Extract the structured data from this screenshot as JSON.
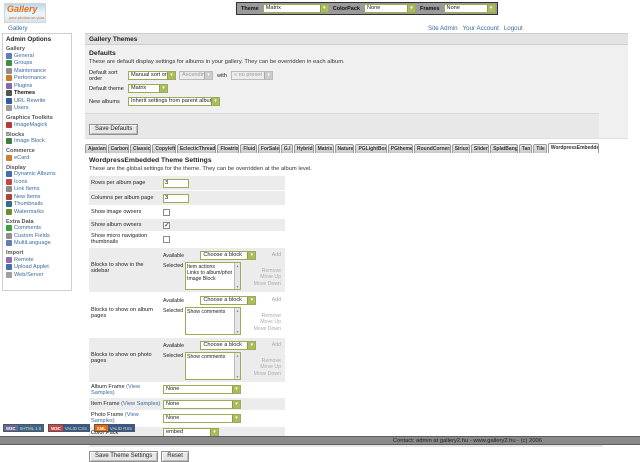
{
  "theme_bar": {
    "theme_label": "Theme",
    "theme_value": "Matrix",
    "colorpack_label": "ColorPack",
    "colorpack_value": "None",
    "frames_label": "Frames",
    "frames_value": "None"
  },
  "logo": {
    "title": "Gallery",
    "tagline": "your photos on your website"
  },
  "nav": {
    "home": "Gallery",
    "links": [
      "Site Admin",
      "Your Account",
      "Logout"
    ]
  },
  "sidebar": {
    "title": "Admin Options",
    "sections": [
      {
        "label": "Gallery",
        "items": [
          {
            "label": "General",
            "icon": "general-icon",
            "color": "#5b7fb4"
          },
          {
            "label": "Groups",
            "icon": "groups-icon",
            "color": "#3f8f3f"
          },
          {
            "label": "Maintenance",
            "icon": "maintenance-icon",
            "color": "#8f8f8f"
          },
          {
            "label": "Performance",
            "icon": "performance-icon",
            "color": "#c87d2e"
          },
          {
            "label": "Plugins",
            "icon": "plugins-icon",
            "color": "#7d6bb0"
          },
          {
            "label": "Themes",
            "icon": "themes-icon",
            "color": "#555555",
            "active": true
          },
          {
            "label": "URL Rewrite",
            "icon": "url-rewrite-icon",
            "color": "#2e5e9e"
          },
          {
            "label": "Users",
            "icon": "users-icon",
            "color": "#9a9a9a"
          }
        ]
      },
      {
        "label": "Graphics Toolkits",
        "items": [
          {
            "label": "ImageMagick",
            "icon": "imagemagick-icon",
            "color": "#b23b3b"
          }
        ]
      },
      {
        "label": "Blocks",
        "items": [
          {
            "label": "Image Block",
            "icon": "image-block-icon",
            "color": "#3e7d3e"
          }
        ]
      },
      {
        "label": "Commerce",
        "items": [
          {
            "label": "eCard",
            "icon": "ecard-icon",
            "color": "#cf7a35"
          }
        ]
      },
      {
        "label": "Display",
        "items": [
          {
            "label": "Dynamic Albums",
            "icon": "dynamic-albums-icon",
            "color": "#3f6db2"
          },
          {
            "label": "Icons",
            "icon": "icons-icon",
            "color": "#c24444"
          },
          {
            "label": "Link Items",
            "icon": "link-items-icon",
            "color": "#8a8a8a"
          },
          {
            "label": "New Items",
            "icon": "new-items-icon",
            "color": "#b2422e"
          },
          {
            "label": "Thumbnails",
            "icon": "thumbnails-icon",
            "color": "#2e6e8e"
          },
          {
            "label": "Watermarks",
            "icon": "watermarks-icon",
            "color": "#6e8e2e"
          }
        ]
      },
      {
        "label": "Extra Data",
        "items": [
          {
            "label": "Comments",
            "icon": "comments-icon",
            "color": "#3f9f3f"
          },
          {
            "label": "Custom Fields",
            "icon": "custom-fields-icon",
            "color": "#8f8f8f"
          },
          {
            "label": "MultiLanguage",
            "icon": "multilanguage-icon",
            "color": "#5f7fb0"
          }
        ]
      },
      {
        "label": "Import",
        "items": [
          {
            "label": "Remote",
            "icon": "remote-icon",
            "color": "#8f6fb0"
          },
          {
            "label": "Upload Applet",
            "icon": "upload-applet-icon",
            "color": "#3f6fb0"
          },
          {
            "label": "Web/Server",
            "icon": "web-server-icon",
            "color": "#9f9f9f"
          }
        ]
      }
    ]
  },
  "main": {
    "page_title": "Gallery Themes",
    "defaults": {
      "title": "Defaults",
      "description": "These are default display settings for albums in your gallery. They can be overridden in each album.",
      "sort_label": "Default sort order",
      "sort_value": "Manual sort order",
      "direction_value": "Ascending",
      "with_label": "with",
      "preset_value": "« no preset »",
      "theme_label": "Default theme",
      "theme_value": "Matrix",
      "albums_label": "New albums",
      "albums_value": "Inherit settings from parent album",
      "save_button": "Save Defaults"
    },
    "tabs": [
      {
        "label": "Ajaxian"
      },
      {
        "label": "Carbon"
      },
      {
        "label": "Classic"
      },
      {
        "label": "Copyleft"
      },
      {
        "label": "EclecticThreads"
      },
      {
        "label": "Floatrix"
      },
      {
        "label": "Fluid"
      },
      {
        "label": "ForSale"
      },
      {
        "label": "G.I"
      },
      {
        "label": "Hybrid"
      },
      {
        "label": "Matrix"
      },
      {
        "label": "Nature"
      },
      {
        "label": "PGLightBox"
      },
      {
        "label": "PGtheme"
      },
      {
        "label": "RoundCorners"
      },
      {
        "label": "Siriux"
      },
      {
        "label": "Slider"
      },
      {
        "label": "SplatBang"
      },
      {
        "label": "Tan"
      },
      {
        "label": "Tile"
      },
      {
        "label": "WordpressEmbedded",
        "active": true
      }
    ],
    "theme_settings": {
      "title": "WordpressEmbedded Theme Settings",
      "description": "These are the global settings for the theme. They can be overridden at the album level.",
      "rows_label": "Rows per album page",
      "rows_value": "3",
      "columns_label": "Columns per album page",
      "columns_value": "3",
      "toggles": [
        {
          "label": "Show image owners",
          "checked": false
        },
        {
          "label": "Show album owners",
          "checked": true
        },
        {
          "label": "Show micro navigation thumbnails",
          "checked": false
        }
      ],
      "blocks": [
        {
          "label": "Blocks to show in the sidebar",
          "available_label": "Available",
          "choose_value": "Choose a block",
          "add_label": "Add",
          "selected_label": "Selected",
          "selected": [
            "Item actions",
            "Links to album/photo peers",
            "Image Block"
          ],
          "actions": [
            "Remove",
            "Move Up",
            "Move Down"
          ]
        },
        {
          "label": "Blocks to show on album pages",
          "available_label": "Available",
          "choose_value": "Choose a block",
          "add_label": "Add",
          "selected_label": "Selected",
          "selected": [
            "Show comments"
          ],
          "actions": [
            "Remove",
            "Move Up",
            "Move Down"
          ]
        },
        {
          "label": "Blocks to show on photo pages",
          "available_label": "Available",
          "choose_value": "Choose a block",
          "add_label": "Add",
          "selected_label": "Selected",
          "selected": [
            "Show comments"
          ],
          "actions": [
            "Remove",
            "Move Up",
            "Move Down"
          ]
        }
      ],
      "frames": [
        {
          "label": "Album Frame",
          "link_label": "(View Samples)",
          "value": "None"
        },
        {
          "label": "Item Frame",
          "link_label": "(View Samples)",
          "value": "None"
        },
        {
          "label": "Photo Frame",
          "link_label": "(View Samples)",
          "value": "None"
        }
      ],
      "colorpack_label": "Color Pack",
      "colorpack_value": "embed",
      "save_button": "Save Theme Settings",
      "reset_button": "Reset"
    }
  },
  "badges": [
    {
      "left": "W3C",
      "right": "XHTML 1.0",
      "left_bg": "#666699",
      "right_bg": "#336699"
    },
    {
      "left": "W3C",
      "right": "VALID CSS",
      "left_bg": "#cc4444",
      "right_bg": "#2d5a9e"
    },
    {
      "left": "XML",
      "right": "VALID RSS",
      "left_bg": "#ee6600",
      "right_bg": "#2d5a9e"
    }
  ],
  "footer": {
    "text": "Contact: admin at gallery2.hu - www.gallery2.hu - (c) 2006"
  },
  "colors": {
    "link_blue": "#3b6aa0",
    "select_green": "#9aad55",
    "row_grey": "#ececec",
    "footer_grey": "#8a8a8a",
    "tab_grey": "#d5d5d5",
    "logo_orange": "#e2680e"
  }
}
